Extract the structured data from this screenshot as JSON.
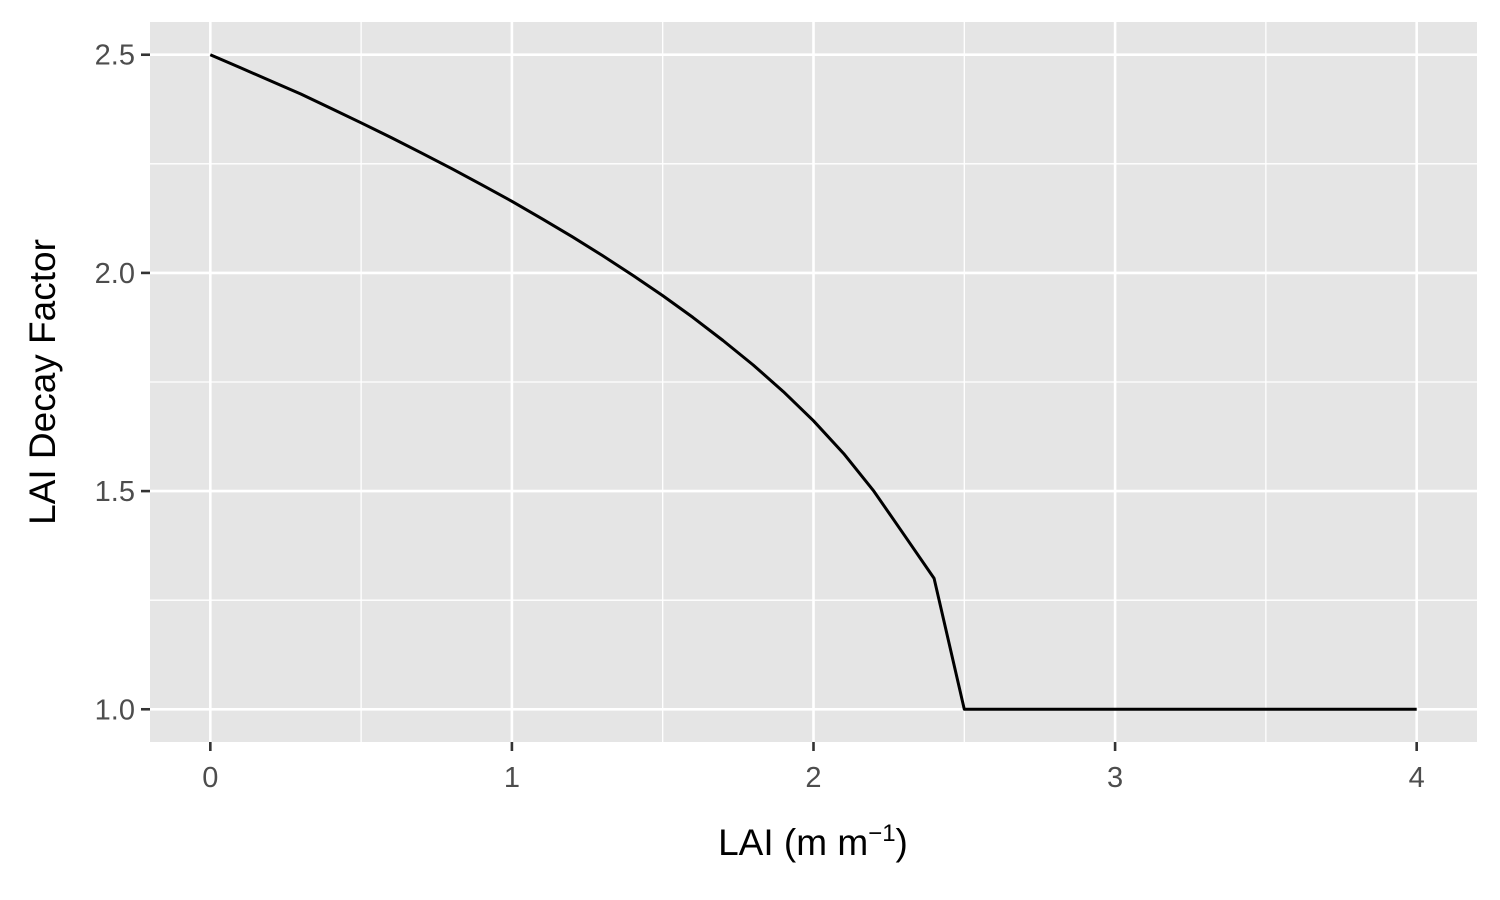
{
  "chart_data": {
    "type": "line",
    "xlabel": {
      "main": "LAI (m m",
      "superscript": "−1",
      "close": ")"
    },
    "ylabel": "LAI Decay Factor",
    "xlim": [
      -0.2,
      4.2
    ],
    "ylim": [
      0.925,
      2.575
    ],
    "x_ticks": [
      0,
      1,
      2,
      3,
      4
    ],
    "x_tick_labels": [
      "0",
      "1",
      "2",
      "3",
      "4"
    ],
    "y_ticks": [
      1.0,
      1.5,
      2.0,
      2.5
    ],
    "y_tick_labels": [
      "1.0",
      "1.5",
      "2.0",
      "2.5"
    ],
    "x_minor_ticks": [
      0.5,
      1.5,
      2.5,
      3.5
    ],
    "y_minor_ticks": [
      1.25,
      1.75,
      2.25
    ],
    "grid": true,
    "series": [
      {
        "color": "#000000",
        "x": [
          0,
          0.1,
          0.2,
          0.3,
          0.4,
          0.5,
          0.6,
          0.7,
          0.8,
          0.9,
          1.0,
          1.1,
          1.2,
          1.3,
          1.4,
          1.5,
          1.6,
          1.7,
          1.8,
          1.9,
          2.0,
          2.1,
          2.2,
          2.3,
          2.4,
          2.5,
          2.6,
          2.7,
          2.8,
          2.9,
          3.0,
          3.1,
          3.2,
          3.3,
          3.4,
          3.5,
          3.6,
          3.7,
          3.8,
          3.9,
          4.0
        ],
        "y": [
          2.5,
          2.47,
          2.44,
          2.41,
          2.377,
          2.344,
          2.31,
          2.275,
          2.239,
          2.202,
          2.164,
          2.124,
          2.083,
          2.04,
          1.995,
          1.948,
          1.898,
          1.845,
          1.789,
          1.728,
          1.661,
          1.586,
          1.5,
          1.4,
          1.3,
          1.0,
          1.0,
          1.0,
          1.0,
          1.0,
          1.0,
          1.0,
          1.0,
          1.0,
          1.0,
          1.0,
          1.0,
          1.0,
          1.0,
          1.0,
          1.0
        ]
      }
    ]
  }
}
